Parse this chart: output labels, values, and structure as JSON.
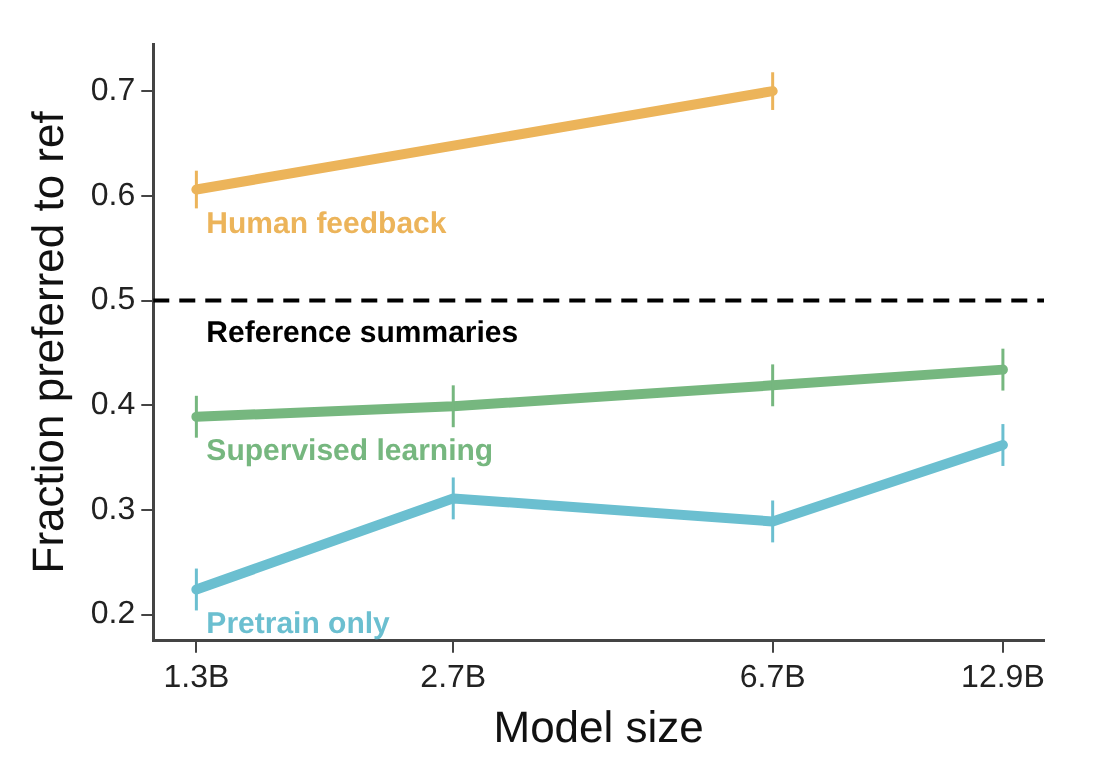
{
  "chart_data": {
    "type": "line",
    "xlabel": "Model size",
    "ylabel": "Fraction preferred to ref",
    "log": "x",
    "xlim": [
      1.15,
      14.5
    ],
    "xticks": [
      {
        "value": 1.3,
        "label": "1.3B"
      },
      {
        "value": 2.7,
        "label": "2.7B"
      },
      {
        "value": 6.7,
        "label": "6.7B"
      },
      {
        "value": 12.9,
        "label": "12.9B"
      }
    ],
    "ylim": [
      0.175,
      0.745
    ],
    "yticks": [
      0.2,
      0.3,
      0.4,
      0.5,
      0.6,
      0.7
    ],
    "grid": false,
    "legend": false,
    "marker": "none",
    "line_style": "solid",
    "series": [
      {
        "name": "Human feedback",
        "color": "#ecb45a",
        "x": [
          1.3,
          6.7
        ],
        "values": [
          0.606,
          0.7
        ],
        "errors": [
          0.018,
          0.018
        ]
      },
      {
        "name": "Supervised learning",
        "color": "#76b77f",
        "x": [
          1.3,
          2.7,
          6.7,
          12.9
        ],
        "values": [
          0.389,
          0.399,
          0.419,
          0.434
        ],
        "errors": [
          0.02,
          0.02,
          0.02,
          0.02
        ]
      },
      {
        "name": "Pretrain only",
        "color": "#6bbfd0",
        "x": [
          1.3,
          2.7,
          6.7,
          12.9
        ],
        "values": [
          0.224,
          0.311,
          0.289,
          0.362
        ],
        "errors": [
          0.02,
          0.02,
          0.02,
          0.02
        ]
      }
    ],
    "ref_lines": [
      {
        "axis": "y",
        "value": 0.5,
        "label": "Reference summaries",
        "color": "#000000",
        "line_style": "dashed"
      }
    ]
  }
}
